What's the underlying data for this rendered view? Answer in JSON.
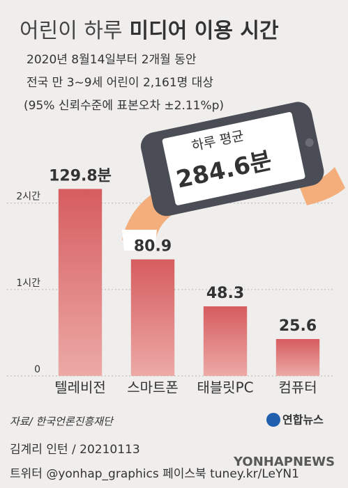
{
  "chart_data": {
    "type": "bar",
    "title": "어린이 하루",
    "title_emphasis": "미디어 이용 시간",
    "subtitle": [
      "2020년 8월14일부터 2개월 동안",
      "전국 만 3~9세 어린이 2,161명 대상",
      "(95% 신뢰수준에 표본오차 ±2.11%p)"
    ],
    "categories": [
      "텔레비전",
      "스마트폰",
      "태블릿PC",
      "컴퓨터"
    ],
    "values": [
      129.8,
      80.9,
      48.3,
      25.6
    ],
    "value_labels": [
      "129.8분",
      "80.9",
      "48.3",
      "25.6"
    ],
    "color": "#d65c5f",
    "ylim": [
      0,
      130
    ],
    "yticks": [
      0,
      {
        "value": 60,
        "label": "1시간"
      },
      {
        "value": 120,
        "label": "2시간"
      }
    ],
    "grid": true,
    "annotation": {
      "label": "하루 평균",
      "value": "284.6분"
    },
    "source": "자료/ 한국언론진흥재단",
    "logo": "연합뉴스",
    "credit": "김계리 인턴 / 20210113",
    "social": "트위터 @yonhap_graphics  페이스북 tuney.kr/LeYN1",
    "watermark": "YONHAPNEWS"
  }
}
